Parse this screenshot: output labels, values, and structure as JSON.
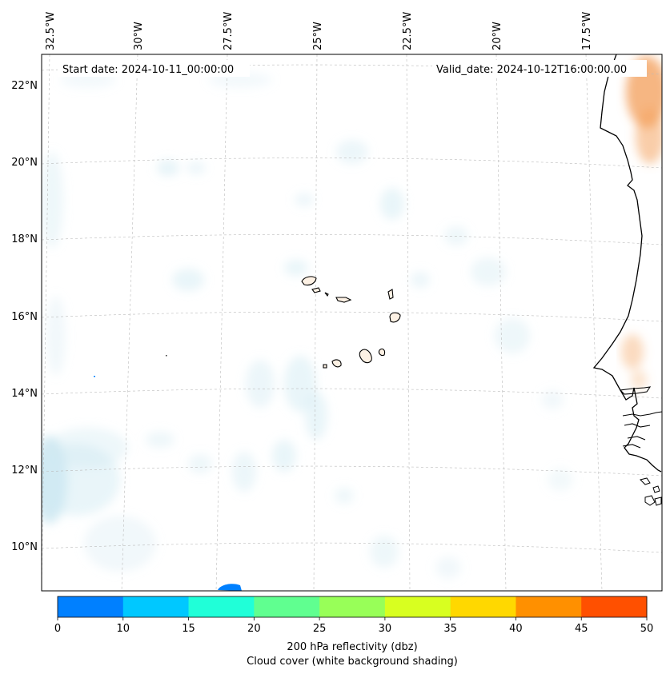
{
  "map": {
    "start_date": "Start date: 2024-10-11_00:00:00",
    "valid_date": "Valid_date: 2024-10-12T16:00:00.00",
    "lon_labels": [
      "32.5°W",
      "30°W",
      "27.5°W",
      "25°W",
      "22.5°W",
      "20°W",
      "17.5°W"
    ],
    "lat_labels": [
      "22°N",
      "20°N",
      "18°N",
      "16°N",
      "14°N",
      "12°N",
      "10°N"
    ],
    "colors": {
      "coast": "#000000",
      "cloud": "#cfe9f2",
      "warm": "#f4a461",
      "grid": "#bbbbbb"
    }
  },
  "colorbar": {
    "ticks": [
      "0",
      "10",
      "15",
      "20",
      "25",
      "30",
      "35",
      "40",
      "45",
      "50"
    ],
    "colors": [
      "#0080ff",
      "#00c8ff",
      "#20ffd8",
      "#60ff90",
      "#98ff58",
      "#d8ff20",
      "#ffd800",
      "#ff9000",
      "#ff5000"
    ],
    "label_line1": "200 hPa reflectivity (dbz)",
    "label_line2": "Cloud cover (white background shading)"
  }
}
